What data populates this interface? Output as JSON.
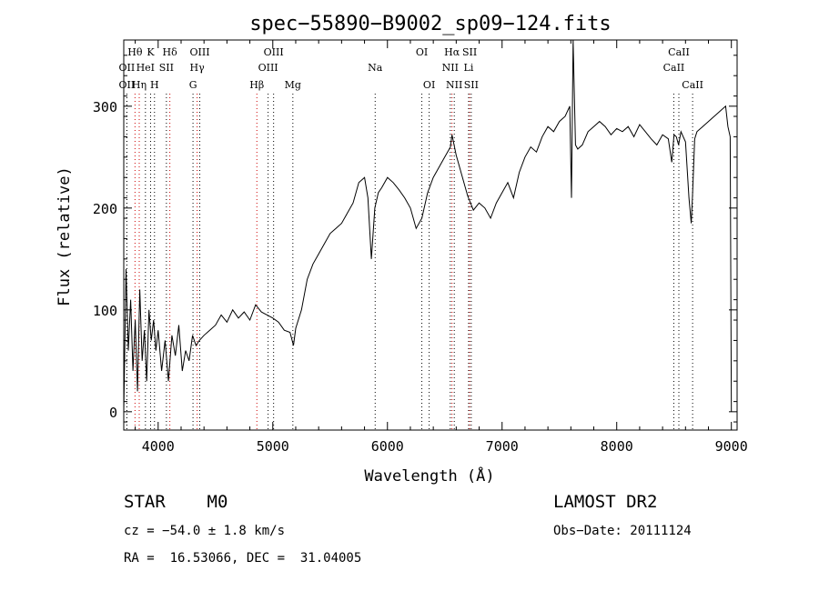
{
  "chart_data": {
    "type": "line",
    "title": "spec−55890−B9002_sp09−124.fits",
    "xlabel": "Wavelength (Å)",
    "ylabel": "Flux (relative)",
    "xlim": [
      3700,
      9050
    ],
    "ylim": [
      -18,
      365
    ],
    "xticks": [
      4000,
      5000,
      6000,
      7000,
      8000,
      9000
    ],
    "yticks": [
      0,
      100,
      200,
      300
    ],
    "grid": false,
    "series": [
      {
        "x": [
          3700,
          3720,
          3740,
          3760,
          3780,
          3800,
          3820,
          3840,
          3860,
          3880,
          3900,
          3920,
          3940,
          3960,
          3980,
          4000,
          4030,
          4060,
          4090,
          4120,
          4150,
          4180,
          4210,
          4240,
          4270,
          4300,
          4330,
          4360,
          4400,
          4450,
          4500,
          4550,
          4600,
          4650,
          4700,
          4750,
          4800,
          4850,
          4900,
          4950,
          5000,
          5050,
          5100,
          5150,
          5180,
          5200,
          5250,
          5300,
          5350,
          5400,
          5450,
          5500,
          5550,
          5600,
          5650,
          5700,
          5750,
          5800,
          5830,
          5860,
          5890,
          5920,
          5950,
          6000,
          6050,
          6100,
          6150,
          6200,
          6250,
          6300,
          6350,
          6400,
          6450,
          6500,
          6550,
          6563,
          6600,
          6650,
          6700,
          6750,
          6800,
          6850,
          6900,
          6950,
          7000,
          7050,
          7100,
          7150,
          7200,
          7250,
          7300,
          7350,
          7400,
          7450,
          7500,
          7550,
          7590,
          7605,
          7620,
          7640,
          7660,
          7700,
          7750,
          7800,
          7850,
          7900,
          7950,
          8000,
          8050,
          8100,
          8150,
          8200,
          8250,
          8300,
          8350,
          8400,
          8450,
          8480,
          8500,
          8520,
          8540,
          8560,
          8600,
          8630,
          8650,
          8660,
          8680,
          8700,
          8750,
          8800,
          8850,
          8900,
          8950,
          8970,
          8990,
          9000
        ],
        "y": [
          0,
          140,
          60,
          110,
          40,
          90,
          20,
          120,
          50,
          80,
          30,
          100,
          70,
          90,
          60,
          80,
          40,
          70,
          30,
          75,
          55,
          85,
          40,
          60,
          50,
          75,
          65,
          70,
          75,
          80,
          85,
          95,
          88,
          100,
          92,
          98,
          90,
          105,
          98,
          95,
          92,
          88,
          80,
          78,
          65,
          82,
          100,
          130,
          145,
          155,
          165,
          175,
          180,
          185,
          195,
          205,
          225,
          230,
          210,
          150,
          200,
          215,
          220,
          230,
          225,
          218,
          210,
          200,
          180,
          190,
          215,
          230,
          240,
          250,
          260,
          272,
          252,
          232,
          212,
          198,
          205,
          200,
          190,
          205,
          215,
          225,
          210,
          235,
          250,
          260,
          255,
          270,
          280,
          275,
          285,
          290,
          300,
          210,
          365,
          262,
          258,
          262,
          275,
          280,
          285,
          280,
          272,
          278,
          275,
          280,
          270,
          282,
          275,
          268,
          262,
          272,
          268,
          245,
          272,
          270,
          262,
          275,
          265,
          210,
          185,
          210,
          268,
          275,
          280,
          285,
          290,
          295,
          300,
          280,
          270,
          0
        ]
      }
    ],
    "line_markers": [
      {
        "label": "Hθ",
        "wl": 3798,
        "row": 1,
        "color": "red"
      },
      {
        "label": "K",
        "wl": 3934,
        "row": 1,
        "color": "black"
      },
      {
        "label": "Hδ",
        "wl": 4102,
        "row": 1,
        "color": "red"
      },
      {
        "label": "OIII",
        "wl": 4363,
        "row": 1,
        "color": "black"
      },
      {
        "label": "OIII",
        "wl": 5007,
        "row": 1,
        "color": "black"
      },
      {
        "label": "OI",
        "wl": 6300,
        "row": 1,
        "color": "black"
      },
      {
        "label": "Hα",
        "wl": 6563,
        "row": 1,
        "color": "red"
      },
      {
        "label": "SII",
        "wl": 6717,
        "row": 1,
        "color": "red"
      },
      {
        "label": "CaII",
        "wl": 8542,
        "row": 1,
        "color": "black"
      },
      {
        "label": "OII",
        "wl": 3727,
        "row": 2,
        "color": "black"
      },
      {
        "label": "HeI",
        "wl": 3889,
        "row": 2,
        "color": "black"
      },
      {
        "label": "SII",
        "wl": 4072,
        "row": 2,
        "color": "black"
      },
      {
        "label": "Hγ",
        "wl": 4340,
        "row": 2,
        "color": "red"
      },
      {
        "label": "OIII",
        "wl": 4959,
        "row": 2,
        "color": "black"
      },
      {
        "label": "Na",
        "wl": 5893,
        "row": 2,
        "color": "black"
      },
      {
        "label": "NII",
        "wl": 6548,
        "row": 2,
        "color": "black"
      },
      {
        "label": "Li",
        "wl": 6708,
        "row": 2,
        "color": "black"
      },
      {
        "label": "CaII",
        "wl": 8498,
        "row": 2,
        "color": "black"
      },
      {
        "label": "OII",
        "wl": 3727,
        "row": 3,
        "color": "black"
      },
      {
        "label": "Hη",
        "wl": 3835,
        "row": 3,
        "color": "red"
      },
      {
        "label": "H",
        "wl": 3968,
        "row": 3,
        "color": "black"
      },
      {
        "label": "G",
        "wl": 4304,
        "row": 3,
        "color": "black"
      },
      {
        "label": "Hβ",
        "wl": 4861,
        "row": 3,
        "color": "red"
      },
      {
        "label": "Mg",
        "wl": 5175,
        "row": 3,
        "color": "black"
      },
      {
        "label": "OI",
        "wl": 6364,
        "row": 3,
        "color": "black"
      },
      {
        "label": "NII",
        "wl": 6583,
        "row": 3,
        "color": "black"
      },
      {
        "label": "SII",
        "wl": 6731,
        "row": 3,
        "color": "black"
      },
      {
        "label": "CaII",
        "wl": 8662,
        "row": 3,
        "color": "black"
      }
    ]
  },
  "info": {
    "class": "STAR    M0",
    "survey": "LAMOST DR2",
    "cz": "cz = −54.0 ± 1.8 km/s",
    "obs_date": "Obs−Date: 20111124",
    "coords": "RA =  16.53066, DEC =  31.04005"
  }
}
